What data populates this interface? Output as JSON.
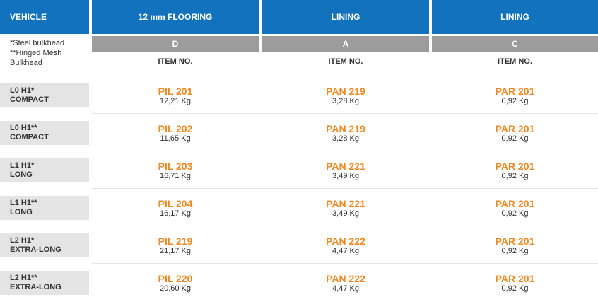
{
  "headers": {
    "vehicle": "VEHICLE",
    "col1": "12 mm FLOORING",
    "col2": "LINING",
    "col3": "LINING"
  },
  "letters": {
    "col1": "D",
    "col2": "A",
    "col3": "C"
  },
  "notes": {
    "line1": "*Steel bulkhead",
    "line2": "**Hinged Mesh",
    "line3": "Bulkhead"
  },
  "item_no": {
    "col1": "ITEM NO.",
    "col2": "ITEM NO.",
    "col3": "ITEM NO."
  },
  "rows": [
    {
      "vehicle_line1": "L0 H1*",
      "vehicle_line2": "COMPACT",
      "c1_code": "PIL 201",
      "c1_weight": "12,21 Kg",
      "c2_code": "PAN 219",
      "c2_weight": "3,28 Kg",
      "c3_code": "PAR 201",
      "c3_weight": "0,92 Kg"
    },
    {
      "vehicle_line1": "L0 H1**",
      "vehicle_line2": "COMPACT",
      "c1_code": "PIL 202",
      "c1_weight": "11,65 Kg",
      "c2_code": "PAN 219",
      "c2_weight": "3,28 Kg",
      "c3_code": "PAR 201",
      "c3_weight": "0,92 Kg"
    },
    {
      "vehicle_line1": "L1 H1*",
      "vehicle_line2": "LONG",
      "c1_code": "PIL 203",
      "c1_weight": "16,71 Kg",
      "c2_code": "PAN 221",
      "c2_weight": "3,49 Kg",
      "c3_code": "PAR 201",
      "c3_weight": "0,92 Kg"
    },
    {
      "vehicle_line1": "L1 H1**",
      "vehicle_line2": "LONG",
      "c1_code": "PIL 204",
      "c1_weight": "16,17 Kg",
      "c2_code": "PAN 221",
      "c2_weight": "3,49 Kg",
      "c3_code": "PAR 201",
      "c3_weight": "0,92 Kg"
    },
    {
      "vehicle_line1": "L2 H1*",
      "vehicle_line2": "EXTRA-LONG",
      "c1_code": "PIL 219",
      "c1_weight": "21,17 Kg",
      "c2_code": "PAN 222",
      "c2_weight": "4,47 Kg",
      "c3_code": "PAR 201",
      "c3_weight": "0,92 Kg"
    },
    {
      "vehicle_line1": "L2 H1**",
      "vehicle_line2": "EXTRA-LONG",
      "c1_code": "PIL 220",
      "c1_weight": "20,60 Kg",
      "c2_code": "PAN 222",
      "c2_weight": "4,47 Kg",
      "c3_code": "PAR 201",
      "c3_weight": "0,92 Kg"
    }
  ],
  "colors": {
    "header_blue": "#1372bd",
    "letter_gray": "#9c9c9c",
    "code_orange": "#ee8a24",
    "vehicle_cell_gray": "#e4e4e4"
  }
}
